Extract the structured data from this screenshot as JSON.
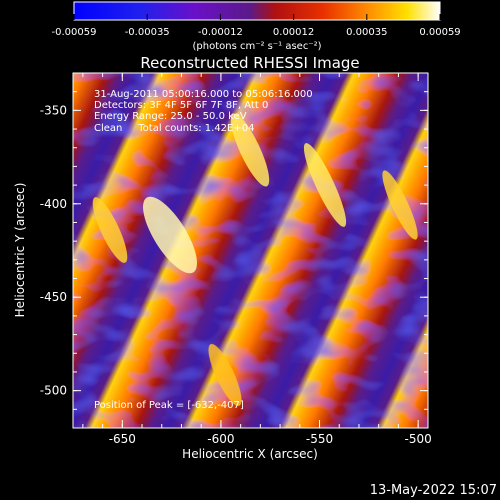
{
  "colorbar": {
    "tick_labels": [
      "-0.00059",
      "-0.00035",
      "-0.00012",
      "0.00012",
      "0.00035",
      "0.00059"
    ],
    "unit_label": "(photons cm⁻² s⁻¹ asec⁻²)"
  },
  "title": "Reconstructed RHESSI Image",
  "annotations": {
    "line1": "31-Aug-2011 05:00:16.000 to 05:06:16.000",
    "line2": "Detectors: 3F 4F 5F 6F 7F 8F, Att 0",
    "line3": "Energy Range: 25.0 - 50.0 keV",
    "line4": "Clean     Total counts: 1.42E+04",
    "peak": "Position of Peak = [-632,-407]"
  },
  "axes": {
    "xlabel": "Heliocentric X (arcsec)",
    "ylabel": "Heliocentric Y (arcsec)",
    "x_ticks": [
      "-650",
      "-600",
      "-550",
      "-500"
    ],
    "y_ticks": [
      "-350",
      "-400",
      "-450",
      "-500"
    ],
    "xlim": [
      -675,
      -495
    ],
    "ylim": [
      -520,
      -330
    ]
  },
  "timestamp": "13-May-2022 15:07",
  "colors": {
    "background": "#000000",
    "axis": "#ffffff",
    "colormap_low": "#0000ff",
    "colormap_mid": "#5a1a8a",
    "colormap_high": "#ffffff"
  }
}
